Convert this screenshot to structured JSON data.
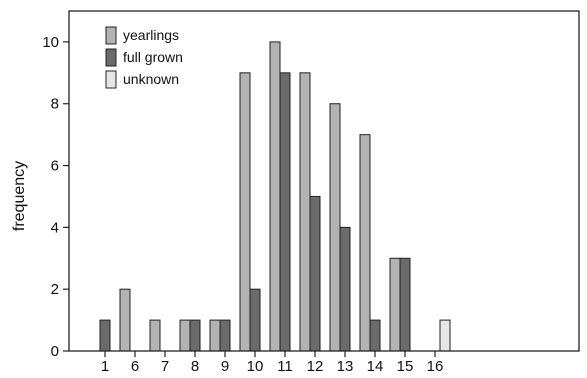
{
  "chart_data": {
    "type": "bar",
    "title": "",
    "xlabel": "",
    "ylabel": "frequency",
    "categories": [
      "1",
      "6",
      "7",
      "8",
      "9",
      "10",
      "11",
      "12",
      "13",
      "14",
      "15",
      "16"
    ],
    "series": [
      {
        "name": "yearlings",
        "color": "#b3b3b3",
        "values": [
          0,
          2,
          1,
          1,
          1,
          9,
          10,
          9,
          8,
          7,
          3,
          0
        ]
      },
      {
        "name": "full grown",
        "color": "#6b6b6b",
        "values": [
          1,
          0,
          0,
          1,
          1,
          2,
          9,
          5,
          4,
          1,
          3,
          0
        ]
      },
      {
        "name": "unknown",
        "color": "#e6e6e6",
        "values": [
          0,
          0,
          0,
          0,
          0,
          0,
          0,
          0,
          0,
          0,
          0,
          1
        ]
      }
    ],
    "ylim": [
      0,
      11
    ],
    "yticks": [
      0,
      2,
      4,
      6,
      8,
      10
    ],
    "grid": false,
    "legend_position": "top-left"
  }
}
